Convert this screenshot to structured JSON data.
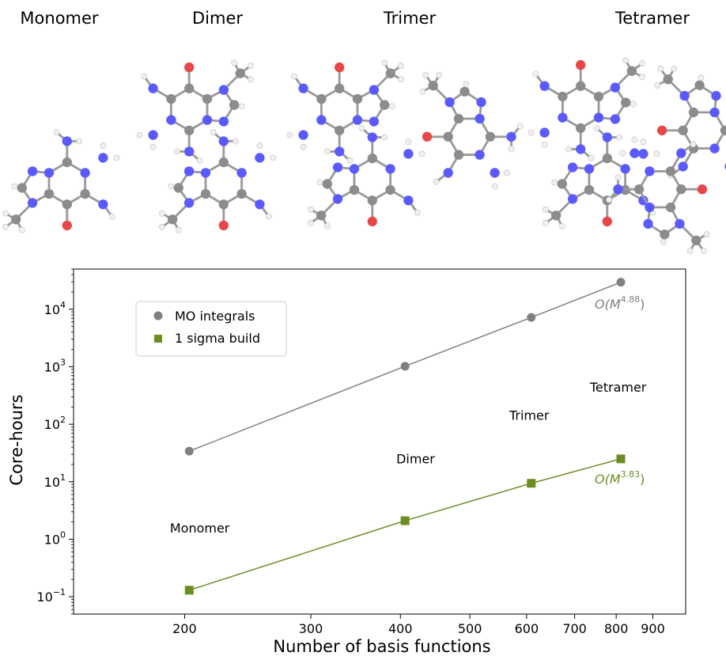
{
  "panels": [
    {
      "title": "Monomer",
      "molecules": [
        "guanine"
      ]
    },
    {
      "title": "Dimer",
      "molecules": [
        "guanine",
        "guanine"
      ]
    },
    {
      "title": "Trimer",
      "molecules": [
        "guanine",
        "guanine",
        "guanine"
      ]
    },
    {
      "title": "Tetramer",
      "molecules": [
        "guanine",
        "guanine",
        "guanine",
        "guanine"
      ]
    }
  ],
  "atom_colors": {
    "C": "#8c8c8c",
    "N": "#5a5aff",
    "O": "#e8474a",
    "H": "#f0f0f0"
  },
  "chart_data": {
    "type": "line",
    "xscale": "log",
    "yscale": "log",
    "xlabel": "Number of basis functions",
    "ylabel": "Core-hours",
    "xlim": [
      140,
      1000
    ],
    "ylim": [
      0.05,
      50000
    ],
    "xticks": [
      {
        "v": 200,
        "label": "200"
      },
      {
        "v": 300,
        "label": "300"
      },
      {
        "v": 400,
        "label": "400"
      },
      {
        "v": 500,
        "label": "500"
      },
      {
        "v": 600,
        "label": "600"
      },
      {
        "v": 700,
        "label": "700"
      },
      {
        "v": 800,
        "label": "800"
      },
      {
        "v": 900,
        "label": "900"
      }
    ],
    "yticks": [
      {
        "v": 0.1,
        "base": "10",
        "exp": "−1"
      },
      {
        "v": 1,
        "base": "10",
        "exp": "0"
      },
      {
        "v": 10,
        "base": "10",
        "exp": "1"
      },
      {
        "v": 100,
        "base": "10",
        "exp": "2"
      },
      {
        "v": 1000,
        "base": "10",
        "exp": "3"
      },
      {
        "v": 10000,
        "base": "10",
        "exp": "4"
      }
    ],
    "x": [
      203,
      406,
      609,
      812
    ],
    "series": [
      {
        "name": "MO integrals",
        "marker": "circle",
        "color": "#808080",
        "values": [
          34,
          1020,
          7200,
          29500
        ],
        "fit": {
          "prefix": "O(M",
          "exp": "4.88",
          "suffix": ")"
        }
      },
      {
        "name": "1 sigma build",
        "marker": "square",
        "color": "#6b8e23",
        "values": [
          0.13,
          2.1,
          9.4,
          25
        ],
        "fit": {
          "prefix": "O(M",
          "exp": "3.83",
          "suffix": ")"
        }
      }
    ],
    "annotations": [
      {
        "text": "Monomer",
        "x": 210,
        "y": 1.3
      },
      {
        "text": "Dimer",
        "x": 420,
        "y": 21
      },
      {
        "text": "Trimer",
        "x": 605,
        "y": 120
      },
      {
        "text": "Tetramer",
        "x": 805,
        "y": 370
      }
    ],
    "legend": {
      "placement": "upper-left"
    },
    "grid": false
  }
}
